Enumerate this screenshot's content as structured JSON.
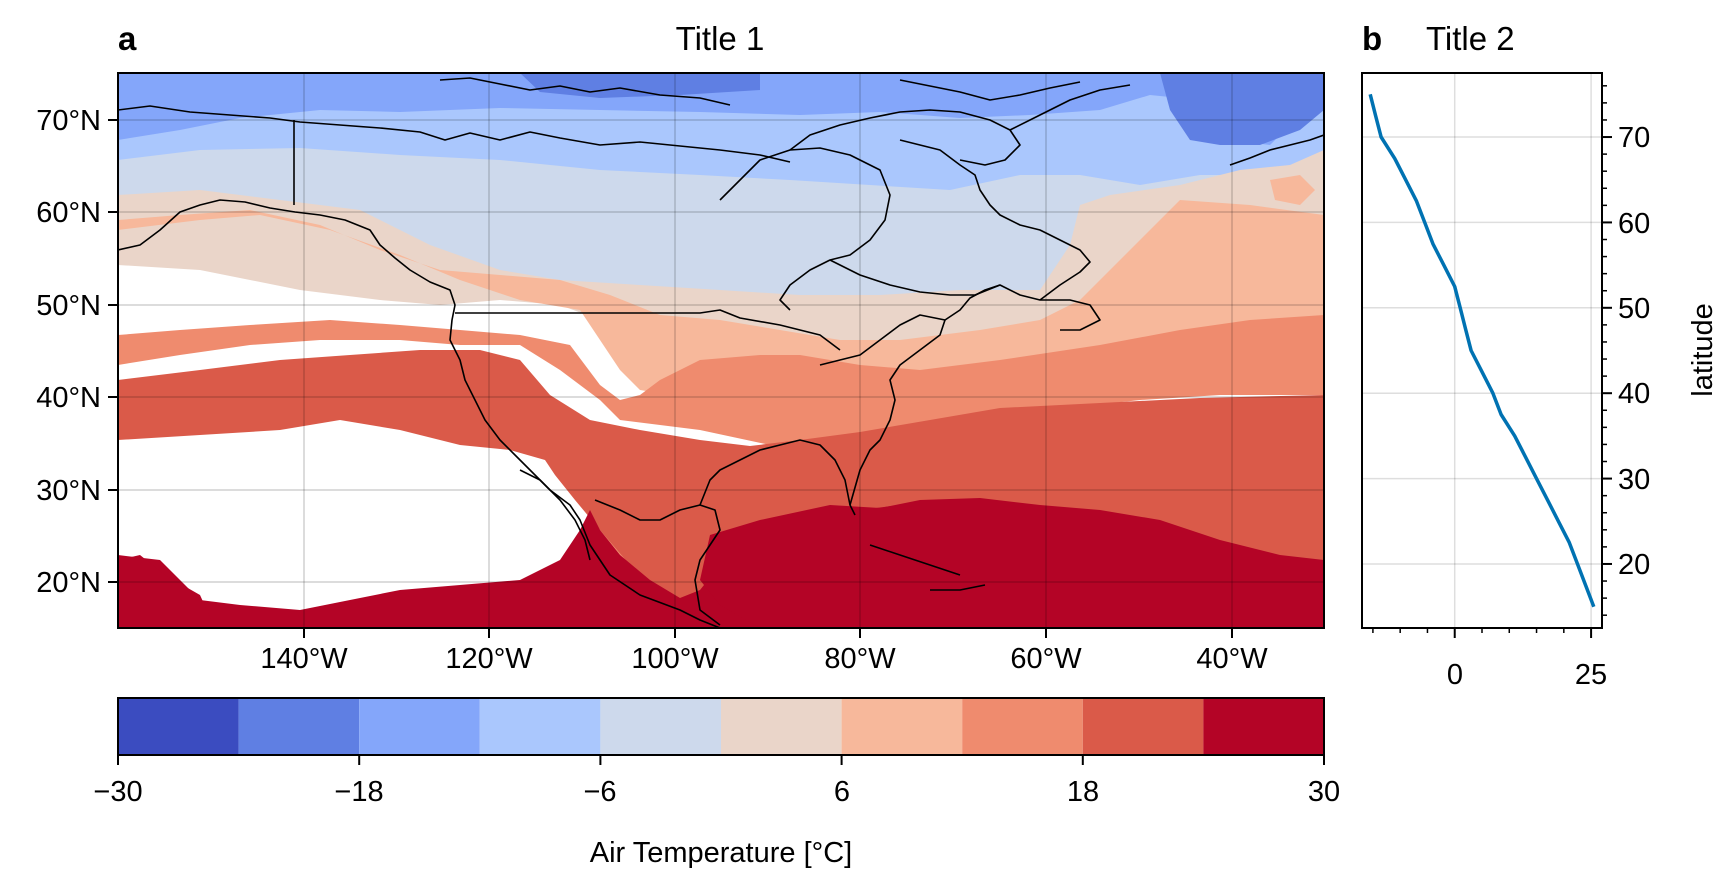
{
  "chart_data": [
    {
      "type": "heatmap",
      "panel_label": "a",
      "title": "Title 1",
      "x_ticks": [
        "140°W",
        "120°W",
        "100°W",
        "80°W",
        "60°W",
        "40°W"
      ],
      "x_tick_values": [
        -140,
        -120,
        -100,
        -80,
        -60,
        -40
      ],
      "y_ticks": [
        "20°N",
        "30°N",
        "40°N",
        "50°N",
        "60°N",
        "70°N"
      ],
      "y_tick_values": [
        20,
        30,
        40,
        50,
        60,
        70
      ],
      "xlim": [
        -160,
        -30
      ],
      "ylim": [
        15,
        75
      ],
      "grid": true,
      "colorbar": {
        "label": "Air Temperature [°C]",
        "ticks": [
          "−30",
          "−18",
          "−6",
          "6",
          "18",
          "30"
        ],
        "tick_values": [
          -30,
          -18,
          -6,
          6,
          18,
          30
        ],
        "levels": [
          -30,
          -24,
          -18,
          -12,
          -6,
          0,
          6,
          12,
          18,
          24,
          30
        ],
        "colors": [
          "#3b4cc0",
          "#5f7fe3",
          "#84a6fa",
          "#aac7fd",
          "#cdd9ec",
          "#ead5c9",
          "#f7b89b",
          "#ef8b6e",
          "#da5a49",
          "#b40426"
        ],
        "placement": "bottom"
      }
    },
    {
      "type": "line",
      "panel_label": "b",
      "title": "Title 2",
      "ylabel": "latitude",
      "x_ticks": [
        "0",
        "25"
      ],
      "x_tick_values": [
        0,
        25
      ],
      "y_ticks": [
        "20",
        "30",
        "40",
        "50",
        "60",
        "70"
      ],
      "y_tick_values": [
        20,
        30,
        40,
        50,
        60,
        70
      ],
      "xlim": [
        -17,
        27
      ],
      "ylim": [
        12.5,
        77.5
      ],
      "grid": true,
      "line_color": "#0072b2",
      "series": [
        {
          "x": [
            -15.5,
            -14.5,
            -13.5,
            -11,
            -9,
            -7,
            -5.5,
            -4,
            -2,
            0,
            1,
            2,
            3,
            5,
            7,
            8.5,
            11,
            13,
            15,
            17,
            19,
            21,
            22.5,
            24,
            25.5
          ],
          "y": [
            75,
            72.5,
            70,
            67.5,
            65,
            62.5,
            60,
            57.5,
            55,
            52.5,
            50,
            47.5,
            45,
            42.5,
            40,
            37.5,
            35,
            32.5,
            30,
            27.5,
            25,
            22.5,
            20,
            17.5,
            15
          ]
        }
      ]
    }
  ]
}
